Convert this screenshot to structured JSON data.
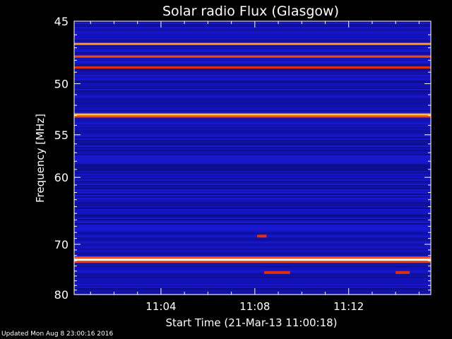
{
  "chart_data": {
    "type": "heatmap",
    "title": "Solar radio Flux (Glasgow)",
    "xlabel": "Start Time (21-Mar-13 11:00:18)",
    "ylabel": "Frequency [MHz]",
    "x_ticks": [
      "11:04",
      "11:08",
      "11:12"
    ],
    "x_tick_minutes": [
      4,
      8,
      12
    ],
    "xlim_minutes": [
      0.3,
      15.5
    ],
    "y_ticks": [
      45,
      50,
      55,
      60,
      70,
      80
    ],
    "ylim": [
      45,
      80
    ],
    "y_scale": "reciprocal",
    "colormap": [
      "#000000",
      "#0a0a6e",
      "#1414c8",
      "#2828e6",
      "#c81414",
      "#ff5a00",
      "#ffaa28",
      "#ffff8c",
      "#ffffff"
    ],
    "background_level": 0.22,
    "intense_bands": [
      {
        "freq_mhz": 46.7,
        "level": 0.72
      },
      {
        "freq_mhz": 47.7,
        "level": 0.6
      },
      {
        "freq_mhz": 48.6,
        "level": 0.55
      },
      {
        "freq_mhz": 52.9,
        "level": 0.78
      },
      {
        "freq_mhz": 53.1,
        "level": 0.6
      },
      {
        "freq_mhz": 72.8,
        "level": 1.0
      },
      {
        "freq_mhz": 72.4,
        "level": 0.62
      },
      {
        "freq_mhz": 73.2,
        "level": 0.58
      }
    ],
    "bursts": [
      {
        "start_minute": 8.1,
        "end_minute": 8.5,
        "freq_mhz": 68.6,
        "level": 0.55
      },
      {
        "start_minute": 8.4,
        "end_minute": 9.5,
        "freq_mhz": 75.3,
        "level": 0.55
      },
      {
        "start_minute": 14.0,
        "end_minute": 14.6,
        "freq_mhz": 75.3,
        "level": 0.55
      }
    ]
  },
  "footer": "Updated Mon Aug  8 23:00:16 2016"
}
